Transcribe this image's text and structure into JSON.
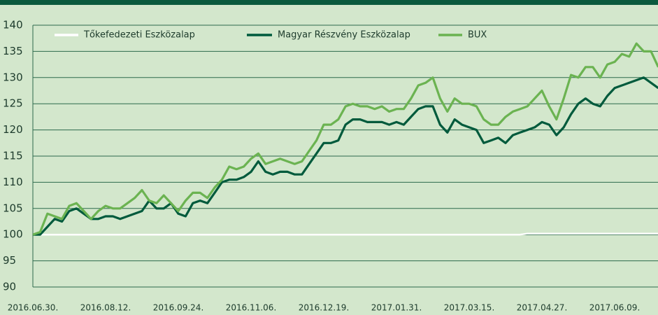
{
  "chart_data": {
    "type": "line",
    "categories": [
      "2016.06.30.",
      null,
      null,
      null,
      null,
      null,
      null,
      null,
      null,
      null,
      "2016.08.12.",
      null,
      null,
      null,
      null,
      null,
      null,
      null,
      null,
      null,
      "2016.09.24.",
      null,
      null,
      null,
      null,
      null,
      null,
      null,
      null,
      null,
      "2016.11.06.",
      null,
      null,
      null,
      null,
      null,
      null,
      null,
      null,
      null,
      "2016.12.19.",
      null,
      null,
      null,
      null,
      null,
      null,
      null,
      null,
      null,
      "2017.01.31.",
      null,
      null,
      null,
      null,
      null,
      null,
      null,
      null,
      null,
      "2017.03.15.",
      null,
      null,
      null,
      null,
      null,
      null,
      null,
      null,
      null,
      "2017.04.27.",
      null,
      null,
      null,
      null,
      null,
      null,
      null,
      null,
      null,
      "2017.06.09.",
      null,
      null,
      null,
      null,
      null,
      null
    ],
    "series": [
      {
        "name": "Tőkefedezeti Eszközalap",
        "color": "#ffffff",
        "values": [
          100,
          100,
          100,
          100,
          100,
          100,
          100,
          100,
          100,
          100,
          100,
          100,
          100,
          100,
          100,
          100,
          100,
          100,
          100,
          100,
          100,
          100,
          100,
          100,
          100,
          100,
          100,
          100,
          100,
          100,
          100,
          100,
          100,
          100,
          100,
          100,
          100,
          100,
          100,
          100,
          100,
          100,
          100,
          100,
          100,
          100,
          100,
          100,
          100,
          100,
          100,
          100,
          100,
          100,
          100,
          100,
          100,
          100,
          100,
          100,
          100,
          100,
          100,
          100,
          100,
          100,
          100,
          100,
          100.2,
          100.2,
          100.2,
          100.2,
          100.2,
          100.2,
          100.2,
          100.2,
          100.2,
          100.2,
          100.2,
          100.2,
          100.2,
          100.2,
          100.2,
          100.2,
          100.2,
          100.2,
          100.2
        ]
      },
      {
        "name": "Magyar Részvény Eszközalap",
        "color": "#005a3c",
        "values": [
          100,
          100,
          101.5,
          103,
          102.5,
          104.5,
          105,
          104,
          103,
          103,
          103.5,
          103.5,
          103,
          103.5,
          104,
          104.5,
          106.5,
          105,
          105,
          106,
          104,
          103.5,
          106,
          106.5,
          106,
          108,
          110,
          110.5,
          110.5,
          111,
          112,
          114,
          112,
          111.5,
          112,
          112,
          111.5,
          111.5,
          113.5,
          115.5,
          117.5,
          117.5,
          118,
          121,
          122,
          122,
          121.5,
          121.5,
          121.5,
          121,
          121.5,
          121,
          122.5,
          124,
          124.5,
          124.5,
          121,
          119.5,
          122,
          121,
          120.5,
          120,
          117.5,
          118,
          118.5,
          117.5,
          119,
          119.5,
          120,
          120.5,
          121.5,
          121,
          119,
          120.5,
          123,
          125,
          126,
          125,
          124.5,
          126.5,
          128,
          128.5,
          129,
          129.5,
          130,
          129,
          128
        ]
      },
      {
        "name": "BUX",
        "color": "#6bb351",
        "values": [
          100,
          100.5,
          104,
          103.5,
          103,
          105.5,
          106,
          104.5,
          103,
          104.5,
          105.5,
          105,
          105,
          106,
          107,
          108.5,
          106.5,
          106,
          107.5,
          106,
          104.5,
          106.5,
          108,
          108,
          107,
          109,
          110.5,
          113,
          112.5,
          113,
          114.5,
          115.5,
          113.5,
          114,
          114.5,
          114,
          113.5,
          114,
          116,
          118,
          121,
          121,
          122,
          124.5,
          125,
          124.5,
          124.5,
          124,
          124.5,
          123.5,
          124,
          124,
          126,
          128.5,
          129,
          130,
          126,
          123.5,
          126,
          125,
          125,
          124.5,
          122,
          121,
          121,
          122.5,
          123.5,
          124,
          124.5,
          126,
          127.5,
          124.5,
          122,
          126,
          130.5,
          130,
          132,
          132,
          130,
          132.5,
          133,
          134.5,
          134,
          136.5,
          135,
          135,
          132
        ]
      }
    ],
    "ylim": [
      90,
      140
    ],
    "yticks": [
      90,
      95,
      100,
      105,
      110,
      115,
      120,
      125,
      130,
      135,
      140
    ],
    "grid": true,
    "legend": "top"
  }
}
